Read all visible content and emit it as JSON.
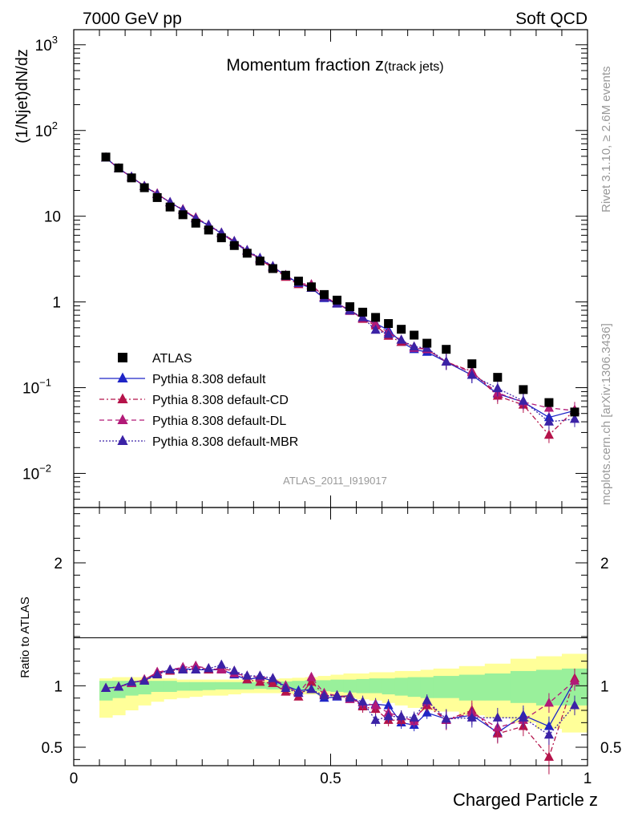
{
  "header": {
    "left": "7000 GeV pp",
    "right": "Soft QCD"
  },
  "side_labels": {
    "rivet": "Rivet 3.1.10, ≥ 2.6M events",
    "mcplots": "mcplots.cern.ch [arXiv:1306.3436]"
  },
  "watermark": "ATLAS_2011_I919017",
  "chart_data": [
    {
      "type": "scatter",
      "yscale": "log",
      "title": "Momentum fraction z(track jets)",
      "title_main": "Momentum fraction ",
      "title_z": "z",
      "title_sub": "(track jets)",
      "ylabel": "(1/Njet)dN/dz",
      "xlim": [
        0,
        1
      ],
      "ylim": [
        0.004,
        1500
      ],
      "yticks": [
        {
          "value": 0.01,
          "label": "10",
          "exp": "−2"
        },
        {
          "value": 0.1,
          "label": "10",
          "exp": "−1"
        },
        {
          "value": 1,
          "label": "1",
          "exp": ""
        },
        {
          "value": 10,
          "label": "10",
          "exp": ""
        },
        {
          "value": 100,
          "label": "10",
          "exp": "2"
        },
        {
          "value": 1000,
          "label": "10",
          "exp": "3"
        }
      ],
      "legend_position": "bottom-left",
      "legend": [
        {
          "label": "ATLAS",
          "color": "#000000",
          "marker": "square",
          "dash": ""
        },
        {
          "label": "Pythia 8.308 default",
          "color": "#1f25c6",
          "marker": "triangle",
          "dash": ""
        },
        {
          "label": "Pythia 8.308 default-CD",
          "color": "#b5134a",
          "marker": "triangle",
          "dash": "6,3,2,3"
        },
        {
          "label": "Pythia 8.308 default-DL",
          "color": "#b21a78",
          "marker": "triangle",
          "dash": "6,4"
        },
        {
          "label": "Pythia 8.308 default-MBR",
          "color": "#3b22a6",
          "marker": "triangle",
          "dash": "2,2"
        }
      ],
      "x": [
        0.0625,
        0.0875,
        0.1125,
        0.1375,
        0.1625,
        0.1875,
        0.2125,
        0.2375,
        0.2625,
        0.2875,
        0.3125,
        0.3375,
        0.3625,
        0.3875,
        0.4125,
        0.4375,
        0.4625,
        0.4875,
        0.5125,
        0.5375,
        0.5625,
        0.5875,
        0.6125,
        0.6375,
        0.6625,
        0.6875,
        0.725,
        0.775,
        0.825,
        0.875,
        0.925,
        0.975
      ],
      "data": {
        "name": "ATLAS",
        "values": [
          49,
          36.5,
          28,
          21.5,
          16.5,
          12.8,
          10.4,
          8.3,
          6.9,
          5.6,
          4.55,
          3.7,
          3.0,
          2.45,
          2.05,
          1.75,
          1.5,
          1.22,
          1.05,
          0.88,
          0.76,
          0.66,
          0.56,
          0.48,
          0.41,
          0.33,
          0.28,
          0.19,
          0.132,
          0.095,
          0.067,
          0.052
        ]
      },
      "series": [
        {
          "name": "Pythia 8.308 default",
          "values": [
            48,
            36,
            28.7,
            22.3,
            18.1,
            14.5,
            11.8,
            9.4,
            7.8,
            6.3,
            4.95,
            3.9,
            3.2,
            2.55,
            2.05,
            1.65,
            1.45,
            1.1,
            0.95,
            0.81,
            0.64,
            0.56,
            0.47,
            0.34,
            0.28,
            0.26,
            0.2,
            0.14,
            0.085,
            0.068,
            0.045,
            0.054
          ]
        },
        {
          "name": "Pythia 8.308 default-CD",
          "values": [
            48,
            36,
            28.6,
            22.5,
            18.3,
            14.4,
            11.9,
            9.6,
            7.8,
            6.4,
            5.1,
            3.9,
            3.1,
            2.5,
            1.95,
            1.6,
            1.55,
            1.13,
            0.96,
            0.8,
            0.63,
            0.53,
            0.4,
            0.34,
            0.3,
            0.28,
            0.2,
            0.155,
            0.08,
            0.063,
            0.028,
            0.055
          ]
        },
        {
          "name": "Pythia 8.308 default-DL",
          "values": [
            48,
            36,
            28.6,
            22.5,
            18.3,
            14.5,
            12.0,
            9.6,
            7.9,
            6.3,
            5.0,
            4.0,
            3.2,
            2.6,
            2.05,
            1.65,
            1.6,
            1.15,
            0.97,
            0.78,
            0.65,
            0.55,
            0.44,
            0.36,
            0.29,
            0.28,
            0.2,
            0.15,
            0.087,
            0.068,
            0.058,
            0.054
          ]
        },
        {
          "name": "Pythia 8.308 default-MBR",
          "values": [
            48,
            36,
            28.7,
            22.3,
            18.0,
            14.5,
            11.8,
            9.4,
            7.9,
            6.4,
            5.1,
            4.0,
            3.25,
            2.6,
            2.0,
            1.65,
            1.45,
            1.12,
            0.96,
            0.79,
            0.66,
            0.47,
            0.42,
            0.36,
            0.3,
            0.29,
            0.2,
            0.14,
            0.098,
            0.07,
            0.04,
            0.043
          ]
        }
      ]
    },
    {
      "type": "scatter",
      "title": "",
      "xlabel": "Charged Particle z",
      "ylabel": "Ratio to ATLAS",
      "xlim": [
        0,
        1
      ],
      "ylim": [
        0.35,
        2.45
      ],
      "xticks": [
        {
          "value": 0,
          "label": "0"
        },
        {
          "value": 0.5,
          "label": "0.5"
        },
        {
          "value": 1,
          "label": "1"
        }
      ],
      "yticks": [
        {
          "value": 0.5,
          "label": "0.5"
        },
        {
          "value": 1,
          "label": "1"
        },
        {
          "value": 2,
          "label": "2"
        }
      ],
      "band_inner": {
        "lower": [
          0.88,
          0.9,
          0.92,
          0.93,
          0.95,
          0.95,
          0.96,
          0.96,
          0.965,
          0.97,
          0.97,
          0.97,
          0.975,
          0.97,
          0.97,
          0.965,
          0.96,
          0.955,
          0.95,
          0.945,
          0.94,
          0.94,
          0.93,
          0.92,
          0.91,
          0.9,
          0.9,
          0.88,
          0.88,
          0.86,
          0.84,
          0.84
        ],
        "upper": [
          1.04,
          1.04,
          1.04,
          1.04,
          1.04,
          1.04,
          1.03,
          1.03,
          1.03,
          1.03,
          1.03,
          1.03,
          1.03,
          1.03,
          1.035,
          1.04,
          1.045,
          1.045,
          1.05,
          1.05,
          1.055,
          1.06,
          1.06,
          1.065,
          1.07,
          1.07,
          1.08,
          1.09,
          1.1,
          1.12,
          1.13,
          1.14
        ]
      },
      "band_outer": {
        "lower": [
          0.74,
          0.76,
          0.8,
          0.84,
          0.87,
          0.89,
          0.9,
          0.91,
          0.92,
          0.92,
          0.93,
          0.94,
          0.94,
          0.94,
          0.94,
          0.93,
          0.93,
          0.92,
          0.91,
          0.9,
          0.89,
          0.88,
          0.86,
          0.84,
          0.82,
          0.8,
          0.79,
          0.76,
          0.74,
          0.7,
          0.65,
          0.62
        ],
        "upper": [
          1.06,
          1.07,
          1.07,
          1.07,
          1.06,
          1.06,
          1.05,
          1.05,
          1.05,
          1.05,
          1.05,
          1.05,
          1.05,
          1.055,
          1.06,
          1.065,
          1.07,
          1.08,
          1.09,
          1.1,
          1.1,
          1.11,
          1.11,
          1.12,
          1.12,
          1.13,
          1.14,
          1.16,
          1.18,
          1.22,
          1.24,
          1.26
        ]
      },
      "series": [
        {
          "name": "Pythia 8.308 default",
          "values": [
            0.98,
            0.99,
            1.03,
            1.04,
            1.1,
            1.13,
            1.14,
            1.13,
            1.13,
            1.13,
            1.09,
            1.05,
            1.07,
            1.04,
            1.0,
            0.96,
            0.97,
            0.9,
            0.91,
            0.92,
            0.84,
            0.85,
            0.84,
            0.7,
            0.68,
            0.78,
            0.73,
            0.76,
            0.62,
            0.76,
            0.67,
            1.04
          ]
        },
        {
          "name": "Pythia 8.308 default-CD",
          "values": [
            0.98,
            0.99,
            1.02,
            1.05,
            1.11,
            1.12,
            1.14,
            1.16,
            1.13,
            1.14,
            1.12,
            1.05,
            1.03,
            1.02,
            0.95,
            0.91,
            1.03,
            0.93,
            0.92,
            0.91,
            0.83,
            0.81,
            0.72,
            0.72,
            0.73,
            0.84,
            0.72,
            0.8,
            0.61,
            0.67,
            0.42,
            1.06
          ]
        },
        {
          "name": "Pythia 8.308 default-DL",
          "values": [
            0.98,
            0.99,
            1.02,
            1.05,
            1.11,
            1.13,
            1.15,
            1.16,
            1.14,
            1.13,
            1.1,
            1.08,
            1.07,
            1.06,
            1.0,
            0.94,
            1.07,
            0.94,
            0.92,
            0.89,
            0.86,
            0.84,
            0.78,
            0.75,
            0.71,
            0.87,
            0.72,
            0.78,
            0.66,
            0.72,
            0.86,
            1.04
          ]
        },
        {
          "name": "Pythia 8.308 default-MBR",
          "values": [
            0.98,
            0.99,
            1.03,
            1.04,
            1.09,
            1.13,
            1.13,
            1.13,
            1.14,
            1.17,
            1.12,
            1.08,
            1.08,
            1.06,
            0.98,
            0.94,
            0.97,
            0.92,
            0.92,
            0.9,
            0.87,
            0.72,
            0.75,
            0.75,
            0.74,
            0.88,
            0.73,
            0.74,
            0.74,
            0.74,
            0.6,
            0.84
          ]
        }
      ]
    }
  ]
}
